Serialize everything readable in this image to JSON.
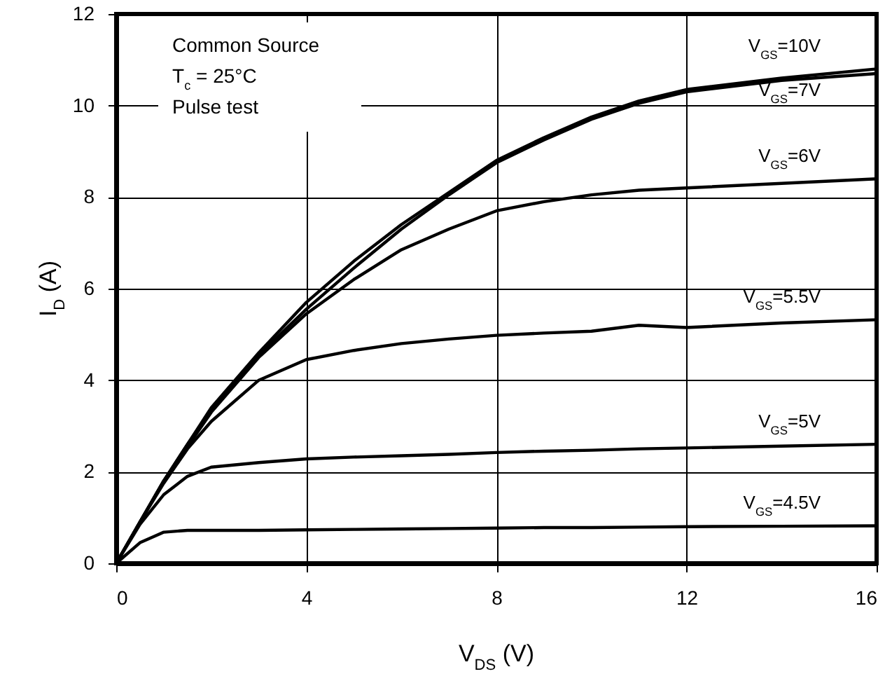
{
  "chart_data": {
    "type": "line",
    "xlabel": "V$_{DS}$ (V)",
    "ylabel": "I$_{D}$ (A)",
    "annotations": [
      "Common Source",
      "T$_{c}$ = 25°C",
      "Pulse test"
    ],
    "x": [
      0,
      0.5,
      1,
      1.5,
      2,
      3,
      4,
      5,
      6,
      7,
      8,
      9,
      10,
      11,
      12,
      14,
      16
    ],
    "series": [
      {
        "name": "V$_{GS}$=10V",
        "color": "#000000",
        "values": [
          0,
          0.9,
          1.8,
          2.6,
          3.4,
          4.6,
          5.7,
          6.6,
          7.4,
          8.1,
          8.8,
          9.3,
          9.75,
          10.1,
          10.35,
          10.6,
          10.8
        ]
      },
      {
        "name": "V$_{GS}$=7V",
        "color": "#000000",
        "values": [
          0,
          0.9,
          1.8,
          2.6,
          3.35,
          4.55,
          5.55,
          6.45,
          7.3,
          8.05,
          8.75,
          9.25,
          9.7,
          10.05,
          10.3,
          10.55,
          10.7
        ]
      },
      {
        "name": "V$_{GS}$=6V",
        "color": "#000000",
        "values": [
          0,
          0.9,
          1.8,
          2.55,
          3.3,
          4.5,
          5.45,
          6.2,
          6.85,
          7.3,
          7.7,
          7.9,
          8.05,
          8.15,
          8.2,
          8.3,
          8.4
        ]
      },
      {
        "name": "V$_{GS}$=5.5V",
        "color": "#000000",
        "values": [
          0,
          0.9,
          1.75,
          2.5,
          3.1,
          4.0,
          4.45,
          4.65,
          4.8,
          4.9,
          4.98,
          5.03,
          5.07,
          5.2,
          5.15,
          5.25,
          5.32
        ]
      },
      {
        "name": "V$_{GS}$=5V",
        "color": "#000000",
        "values": [
          0,
          0.85,
          1.5,
          1.9,
          2.1,
          2.2,
          2.28,
          2.32,
          2.35,
          2.38,
          2.42,
          2.45,
          2.47,
          2.5,
          2.52,
          2.56,
          2.6
        ]
      },
      {
        "name": "V$_{GS}$=4.5V",
        "color": "#000000",
        "values": [
          0,
          0.45,
          0.68,
          0.72,
          0.72,
          0.72,
          0.73,
          0.74,
          0.75,
          0.76,
          0.77,
          0.78,
          0.78,
          0.79,
          0.8,
          0.81,
          0.82
        ]
      }
    ],
    "xlim": [
      0,
      16
    ],
    "xticks": [
      0,
      4,
      8,
      12,
      16
    ],
    "ylim": [
      0,
      12
    ],
    "yticks": [
      0,
      2,
      4,
      6,
      8,
      10,
      12
    ],
    "grid": true,
    "marker": "none",
    "line_style": "solid"
  }
}
